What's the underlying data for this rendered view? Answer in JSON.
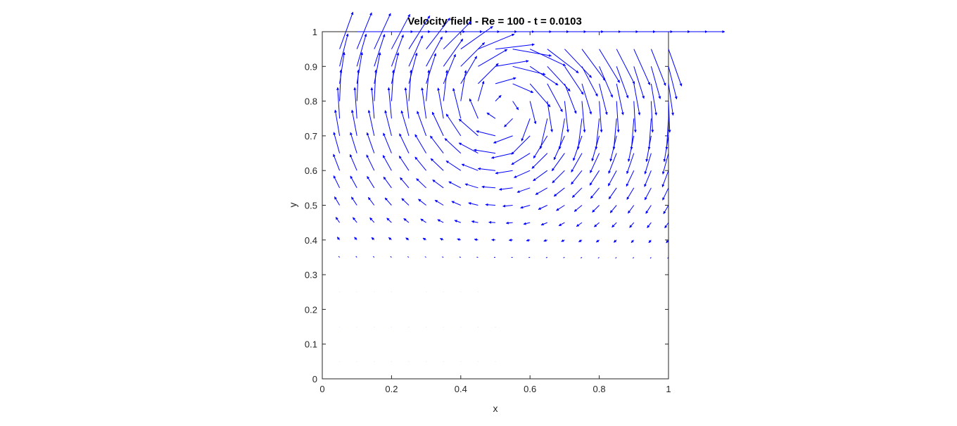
{
  "chart_data": {
    "type": "quiver",
    "title": "Velocity field - Re = 100 - t = 0.0103",
    "xlabel": "x",
    "ylabel": "y",
    "xlim": [
      0,
      1
    ],
    "ylim": [
      0,
      1
    ],
    "x_ticks": [
      "0",
      "0.2",
      "0.4",
      "0.6",
      "0.8",
      "1"
    ],
    "y_ticks": [
      "0",
      "0.1",
      "0.2",
      "0.3",
      "0.4",
      "0.5",
      "0.6",
      "0.7",
      "0.8",
      "0.9",
      "1"
    ],
    "grid": false,
    "arrow_color": "#0000ff",
    "lid_velocity": 1,
    "grid_points": {
      "x": [
        0.05,
        0.1,
        0.15,
        0.2,
        0.25,
        0.3,
        0.35,
        0.4,
        0.45,
        0.5,
        0.55,
        0.6,
        0.65,
        0.7,
        0.75,
        0.8,
        0.85,
        0.9,
        0.95,
        1.0
      ],
      "y": [
        0.05,
        0.1,
        0.15,
        0.2,
        0.25,
        0.3,
        0.35,
        0.4,
        0.45,
        0.5,
        0.55,
        0.6,
        0.65,
        0.7,
        0.75,
        0.8,
        0.85,
        0.9,
        0.95,
        1.0
      ]
    },
    "vortex_center": [
      0.52,
      0.78
    ]
  }
}
